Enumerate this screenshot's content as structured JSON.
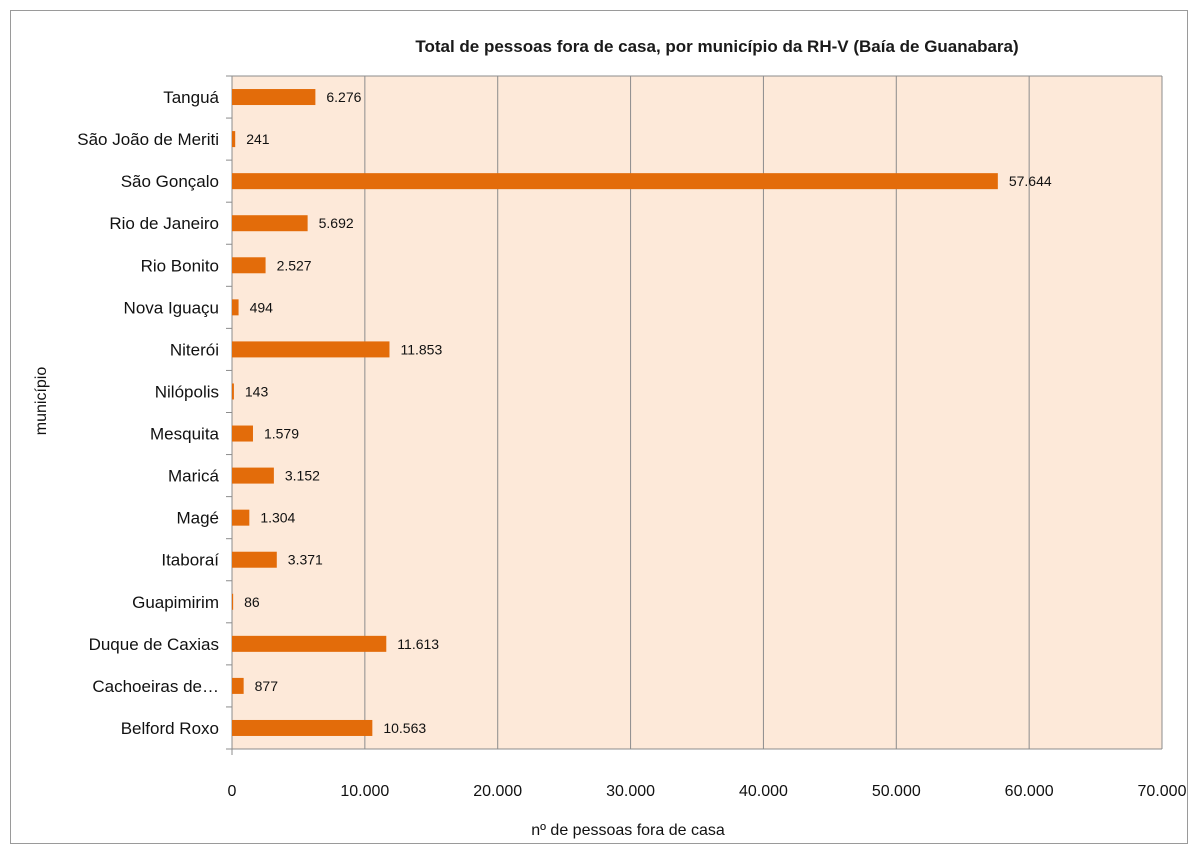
{
  "chart_data": {
    "type": "bar",
    "orientation": "horizontal",
    "title": "Total de pessoas fora de casa, por município da RH-V (Baía de Guanabara)",
    "xlabel": "nº de pessoas fora de casa",
    "ylabel": "município",
    "categories": [
      "Tanguá",
      "São João de Meriti",
      "São Gonçalo",
      "Rio de Janeiro",
      "Rio Bonito",
      "Nova Iguaçu",
      "Niterói",
      "Nilópolis",
      "Mesquita",
      "Maricá",
      "Magé",
      "Itaboraí",
      "Guapimirim",
      "Duque de Caxias",
      "Cachoeiras de…",
      "Belford Roxo"
    ],
    "values": [
      6276,
      241,
      57644,
      5692,
      2527,
      494,
      11853,
      143,
      1579,
      3152,
      1304,
      3371,
      86,
      11613,
      877,
      10563
    ],
    "value_labels": [
      "6.276",
      "241",
      "57.644",
      "5.692",
      "2.527",
      "494",
      "11.853",
      "143",
      "1.579",
      "3.152",
      "1.304",
      "3.371",
      "86",
      "11.613",
      "877",
      "10.563"
    ],
    "xlim": [
      0,
      70000
    ],
    "xticks": [
      0,
      10000,
      20000,
      30000,
      40000,
      50000,
      60000,
      70000
    ],
    "xtick_labels": [
      "0",
      "10.000",
      "20.000",
      "30.000",
      "40.000",
      "50.000",
      "60.000",
      "70.000"
    ],
    "grid": true,
    "legend": "none",
    "colors": {
      "bar": "#e36c0a",
      "plot_background": "#fde9d9",
      "gridline": "#8c8c8c",
      "axis": "#8c8c8c"
    }
  }
}
